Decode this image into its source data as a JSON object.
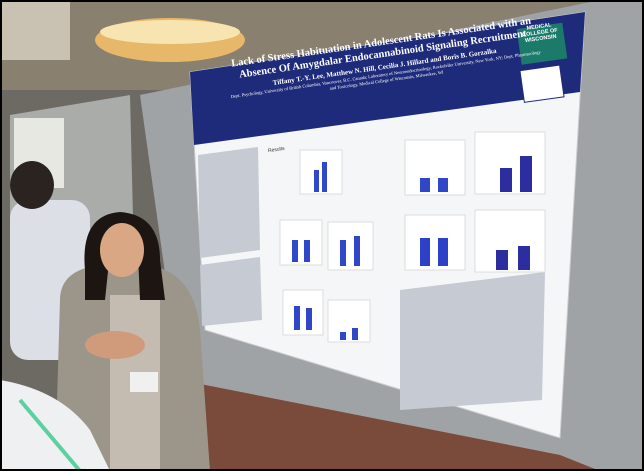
{
  "poster": {
    "title": "Lack of Stress Habituation in Adolescent Rats Is Associated with an Absence Of Amygdalar Endocannabinoid Signaling Recruitment",
    "authors": "Tiffany T.-Y. Lee, Matthew N. Hill, Cecilia J. Hillard and Boris B. Gorzalka",
    "affiliations": "Dept. Psychology, University of British Columbia, Vancouver, B.C. Canada; Laboratory of Neuroendocrinology, Rockefeller University, New York, NY; Dept. Pharmacology and Toxicology, Medical College of Wisconsin, Milwaukee, WI",
    "logo": "MEDICAL COLLEGE OF WISCONSIN",
    "results_heading": "Results"
  }
}
